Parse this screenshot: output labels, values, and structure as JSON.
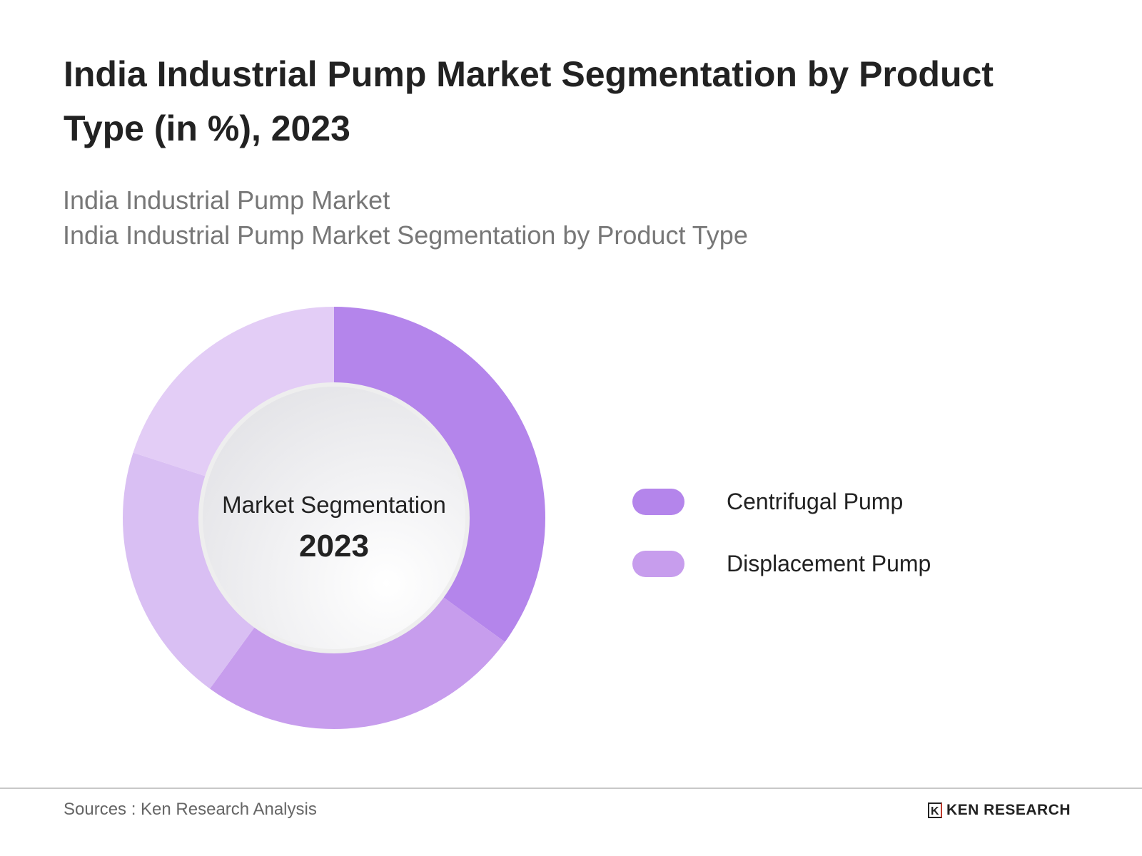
{
  "header": {
    "title": "India Industrial Pump Market Segmentation by Product Type (in %), 2023",
    "subtitle_line1": "India Industrial Pump Market",
    "subtitle_line2": "India Industrial Pump Market Segmentation by Product Type"
  },
  "chart_data": {
    "type": "pie",
    "variant": "donut",
    "center_label": "Market Segmentation",
    "center_value": "2023",
    "values": [
      35,
      25,
      20,
      20
    ],
    "colors": [
      "#b485eb",
      "#c79ded",
      "#d9bff3",
      "#e3cdf6"
    ],
    "legend": {
      "placement": "right",
      "entries": [
        {
          "label": "Centrifugal Pump",
          "color": "#b485eb"
        },
        {
          "label": "Displacement Pump",
          "color": "#c79ded"
        }
      ]
    }
  },
  "footer": {
    "source": "Sources : Ken Research Analysis",
    "logo_text": "KEN RESEARCH",
    "logo_mark": "K"
  }
}
